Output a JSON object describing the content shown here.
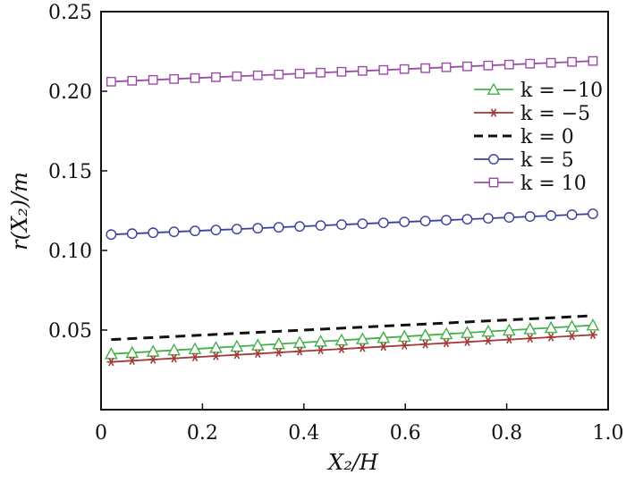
{
  "chart_data": {
    "type": "line",
    "xlabel": "X₂/H",
    "ylabel": "r(X₂)/m",
    "xlim": [
      0,
      1.0
    ],
    "ylim": [
      0,
      0.25
    ],
    "x_ticks": [
      "0",
      "0.2",
      "0.4",
      "0.6",
      "0.8",
      "1.0"
    ],
    "y_ticks": [
      "0.05",
      "0.10",
      "0.15",
      "0.20",
      "0.25"
    ],
    "legend_position": "top-right",
    "grid": false,
    "x": [
      0.02,
      0.97
    ],
    "series": [
      {
        "name": "k = −10",
        "color": "#44b04a",
        "marker": "triangle",
        "dash": "solid",
        "values": [
          0.035,
          0.053
        ]
      },
      {
        "name": "k = −5",
        "color": "#a33a3a",
        "marker": "asterisk",
        "dash": "solid",
        "values": [
          0.03,
          0.047
        ]
      },
      {
        "name": "k = 0",
        "color": "#111111",
        "marker": "none",
        "dash": "dashed",
        "values": [
          0.044,
          0.059
        ]
      },
      {
        "name": "k = 5",
        "color": "#3c3f9a",
        "marker": "circle",
        "dash": "solid",
        "values": [
          0.11,
          0.123
        ]
      },
      {
        "name": "k = 10",
        "color": "#9b4aa8",
        "marker": "square",
        "dash": "solid",
        "values": [
          0.206,
          0.219
        ]
      }
    ]
  }
}
